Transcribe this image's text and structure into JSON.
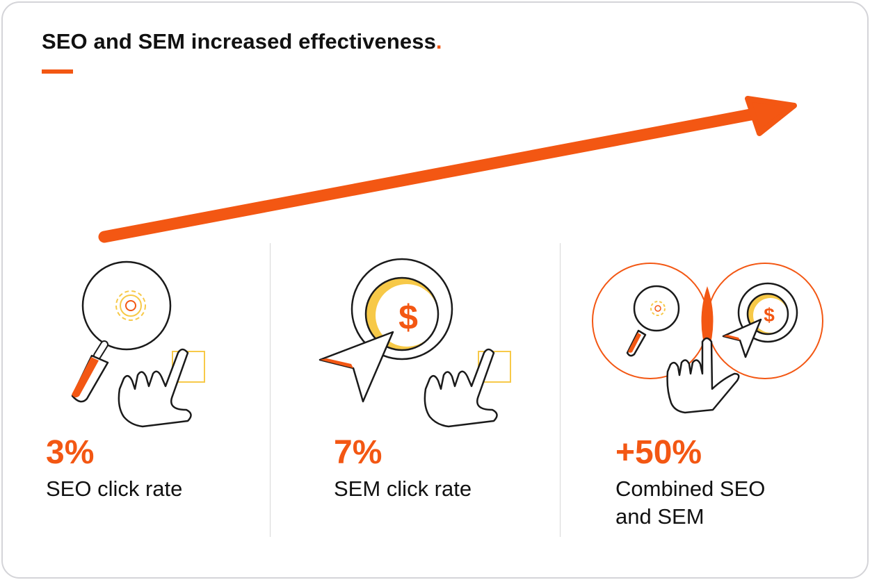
{
  "title": {
    "text": "SEO and SEM increased effectiveness",
    "dot": "."
  },
  "colors": {
    "accent": "#f35713",
    "yellow": "#f7c948",
    "ink": "#1a1a1a",
    "divider": "#d8d8d8"
  },
  "stats": [
    {
      "value": "3%",
      "label": "SEO click rate",
      "icon": "magnifier-gear-pointer-hand-icon"
    },
    {
      "value": "7%",
      "label": "SEM click rate",
      "icon": "dollar-coin-cursor-hand-icon"
    },
    {
      "value": "+50%",
      "label_line1": "Combined SEO",
      "label_line2": "and SEM",
      "icon": "venn-seo-sem-icon"
    }
  ]
}
